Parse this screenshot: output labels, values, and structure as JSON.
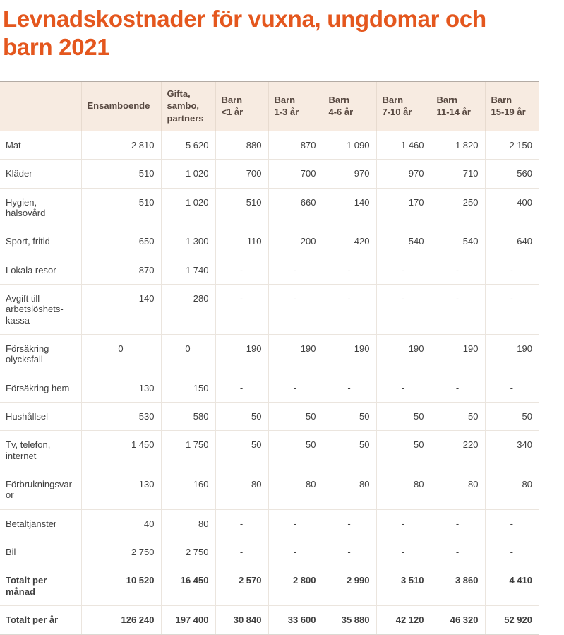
{
  "title": "Levnadskostnader för vuxna, ungdomar och barn 2021",
  "colors": {
    "accent": "#e4571e",
    "header_bg": "#f7ebe1",
    "header_text": "#574840",
    "body_text": "#3f3f3f",
    "row_border": "#ebe5de",
    "table_top_border": "#b3aba4",
    "table_bottom_border": "#dcd9d3"
  },
  "table": {
    "columns": [
      "Ensamboende",
      "Gifta,\nsambo,\npartners",
      "Barn\n<1 år",
      "Barn\n1-3 år",
      "Barn\n4-6 år",
      "Barn\n7-10 år",
      "Barn\n11-14 år",
      "Barn\n15-19 år"
    ],
    "rows": [
      {
        "label": "Mat",
        "total": false,
        "values": [
          "2 810",
          "5 620",
          "880",
          "870",
          "1 090",
          "1 460",
          "1 820",
          "2 150"
        ]
      },
      {
        "label": "Kläder",
        "total": false,
        "values": [
          "510",
          "1 020",
          "700",
          "700",
          "970",
          "970",
          "710",
          "560"
        ]
      },
      {
        "label": "Hygien, hälsovård",
        "total": false,
        "values": [
          "510",
          "1 020",
          "510",
          "660",
          "140",
          "170",
          "250",
          "400"
        ]
      },
      {
        "label": "Sport, fritid",
        "total": false,
        "values": [
          "650",
          "1 300",
          "110",
          "200",
          "420",
          "540",
          "540",
          "640"
        ]
      },
      {
        "label": "Lokala resor",
        "total": false,
        "values": [
          "870",
          "1 740",
          "-",
          "-",
          "-",
          "-",
          "-",
          "-"
        ]
      },
      {
        "label": "Avgift till arbetslöshets-kassa",
        "total": false,
        "values": [
          "140",
          "280",
          "-",
          "-",
          "-",
          "-",
          "-",
          "-"
        ]
      },
      {
        "label": "Försäkring olycksfall",
        "total": false,
        "values": [
          "0",
          "0",
          "190",
          "190",
          "190",
          "190",
          "190",
          "190"
        ]
      },
      {
        "label": "Försäkring hem",
        "total": false,
        "values": [
          "130",
          "150",
          "-",
          "-",
          "-",
          "-",
          "-",
          "-"
        ]
      },
      {
        "label": "Hushållsel",
        "total": false,
        "values": [
          "530",
          "580",
          "50",
          "50",
          "50",
          "50",
          "50",
          "50"
        ]
      },
      {
        "label": "Tv, telefon, internet",
        "total": false,
        "values": [
          "1 450",
          "1 750",
          "50",
          "50",
          "50",
          "50",
          "220",
          "340"
        ]
      },
      {
        "label": "Förbrukningsvaror",
        "total": false,
        "values": [
          "130",
          "160",
          "80",
          "80",
          "80",
          "80",
          "80",
          "80"
        ]
      },
      {
        "label": "Betaltjänster",
        "total": false,
        "values": [
          "40",
          "80",
          "-",
          "-",
          "-",
          "-",
          "-",
          "-"
        ]
      },
      {
        "label": "Bil",
        "total": false,
        "values": [
          "2 750",
          "2 750",
          "-",
          "-",
          "-",
          "-",
          "-",
          "-"
        ]
      },
      {
        "label": "Totalt per månad",
        "total": true,
        "values": [
          "10 520",
          "16 450",
          "2 570",
          "2 800",
          "2 990",
          "3 510",
          "3 860",
          "4 410"
        ]
      },
      {
        "label": "Totalt per år",
        "total": true,
        "values": [
          "126 240",
          "197 400",
          "30 840",
          "33 600",
          "35 880",
          "42 120",
          "46 320",
          "52 920"
        ]
      }
    ]
  },
  "chart_data": {
    "type": "table",
    "title": "Levnadskostnader för vuxna, ungdomar och barn 2021",
    "columns": [
      "Ensamboende",
      "Gifta, sambo, partners",
      "Barn <1 år",
      "Barn 1-3 år",
      "Barn 4-6 år",
      "Barn 7-10 år",
      "Barn 11-14 år",
      "Barn 15-19 år"
    ],
    "row_labels": [
      "Mat",
      "Kläder",
      "Hygien, hälsovård",
      "Sport, fritid",
      "Lokala resor",
      "Avgift till arbetslöshets-kassa",
      "Försäkring olycksfall",
      "Försäkring hem",
      "Hushållsel",
      "Tv, telefon, internet",
      "Förbrukningsvaror",
      "Betaltjänster",
      "Bil",
      "Totalt per månad",
      "Totalt per år"
    ],
    "values": [
      [
        2810,
        5620,
        880,
        870,
        1090,
        1460,
        1820,
        2150
      ],
      [
        510,
        1020,
        700,
        700,
        970,
        970,
        710,
        560
      ],
      [
        510,
        1020,
        510,
        660,
        140,
        170,
        250,
        400
      ],
      [
        650,
        1300,
        110,
        200,
        420,
        540,
        540,
        640
      ],
      [
        870,
        1740,
        null,
        null,
        null,
        null,
        null,
        null
      ],
      [
        140,
        280,
        null,
        null,
        null,
        null,
        null,
        null
      ],
      [
        0,
        0,
        190,
        190,
        190,
        190,
        190,
        190
      ],
      [
        130,
        150,
        null,
        null,
        null,
        null,
        null,
        null
      ],
      [
        530,
        580,
        50,
        50,
        50,
        50,
        50,
        50
      ],
      [
        1450,
        1750,
        50,
        50,
        50,
        50,
        220,
        340
      ],
      [
        130,
        160,
        80,
        80,
        80,
        80,
        80,
        80
      ],
      [
        40,
        80,
        null,
        null,
        null,
        null,
        null,
        null
      ],
      [
        2750,
        2750,
        null,
        null,
        null,
        null,
        null,
        null
      ],
      [
        10520,
        16450,
        2570,
        2800,
        2990,
        3510,
        3860,
        4410
      ],
      [
        126240,
        197400,
        30840,
        33600,
        35880,
        42120,
        46320,
        52920
      ]
    ]
  }
}
